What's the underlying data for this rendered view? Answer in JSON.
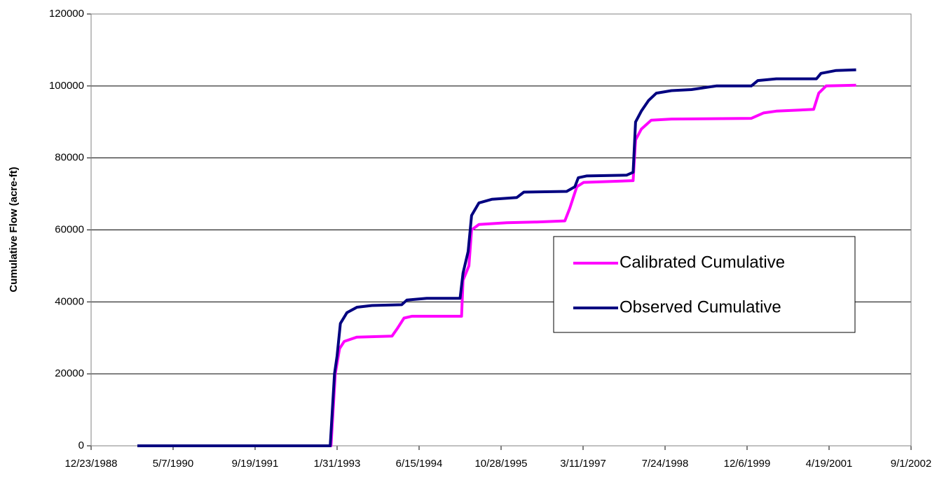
{
  "chart_data": {
    "type": "line",
    "y_label": "Cumulative Flow (acre-ft)",
    "xlim": [
      "12/23/1988",
      "9/1/2002"
    ],
    "xticks": [
      "12/23/1988",
      "5/7/1990",
      "9/19/1991",
      "1/31/1993",
      "6/15/1994",
      "10/28/1995",
      "3/11/1997",
      "7/24/1998",
      "12/6/1999",
      "4/19/2001",
      "9/1/2002"
    ],
    "ylim": [
      0,
      120000
    ],
    "yticks": [
      0,
      20000,
      40000,
      60000,
      80000,
      100000,
      120000
    ],
    "grid": true,
    "legend": "right",
    "series": [
      {
        "name": "Calibrated Cumulative",
        "color": "#ff00ff",
        "x": [
          "10/1/1989",
          "12/25/1992",
          "1/20/1993",
          "2/15/1993",
          "3/15/1993",
          "6/1/1993",
          "1/1/1994",
          "2/1/1994",
          "3/15/1994",
          "5/1/1994",
          "3/1/1995",
          "3/10/1995",
          "4/15/1995",
          "5/1/1995",
          "6/15/1995",
          "12/1/1995",
          "6/1/1996",
          "11/20/1996",
          "12/20/1996",
          "2/1/1997",
          "3/15/1997",
          "1/10/1998",
          "1/25/1998",
          "3/1/1998",
          "5/1/1998",
          "9/1/1998",
          "1/1/2000",
          "3/15/2000",
          "6/1/2000",
          "1/15/2001",
          "2/15/2001",
          "4/1/2001",
          "10/1/2001"
        ],
        "values": [
          0,
          0,
          20000,
          27000,
          29000,
          30200,
          30500,
          32500,
          35500,
          36000,
          36000,
          46000,
          50000,
          60000,
          61500,
          62000,
          62200,
          62500,
          66000,
          72000,
          73200,
          73700,
          85000,
          88000,
          90500,
          90800,
          91000,
          92500,
          93000,
          93500,
          98000,
          100000,
          100200
        ]
      },
      {
        "name": "Observed Cumulative",
        "color": "#000080",
        "x": [
          "10/1/1989",
          "12/20/1992",
          "1/15/1993",
          "1/31/1993",
          "2/20/1993",
          "4/1/1993",
          "6/1/1993",
          "9/1/1993",
          "3/1/1994",
          "4/1/1994",
          "8/1/1994",
          "2/20/1995",
          "3/10/1995",
          "4/10/1995",
          "5/1/1995",
          "6/15/1995",
          "9/1/1995",
          "2/1/1996",
          "3/15/1996",
          "12/1/1996",
          "1/20/1997",
          "2/10/1997",
          "4/1/1997",
          "12/1/1997",
          "1/10/1998",
          "1/25/1998",
          "3/1/1998",
          "4/15/1998",
          "6/1/1998",
          "9/1/1998",
          "1/1/1999",
          "6/1/1999",
          "1/1/2000",
          "2/10/2000",
          "6/1/2000",
          "2/1/2001",
          "3/1/2001",
          "6/1/2001",
          "10/1/2001"
        ],
        "values": [
          0,
          0,
          20000,
          25000,
          34000,
          37000,
          38500,
          39000,
          39200,
          40500,
          41000,
          41000,
          48000,
          54000,
          64000,
          67500,
          68500,
          69000,
          70500,
          70700,
          72000,
          74500,
          75000,
          75200,
          76000,
          90000,
          93000,
          96000,
          98000,
          98700,
          99000,
          100000,
          100000,
          101500,
          102000,
          102000,
          103500,
          104300,
          104500
        ]
      }
    ]
  }
}
